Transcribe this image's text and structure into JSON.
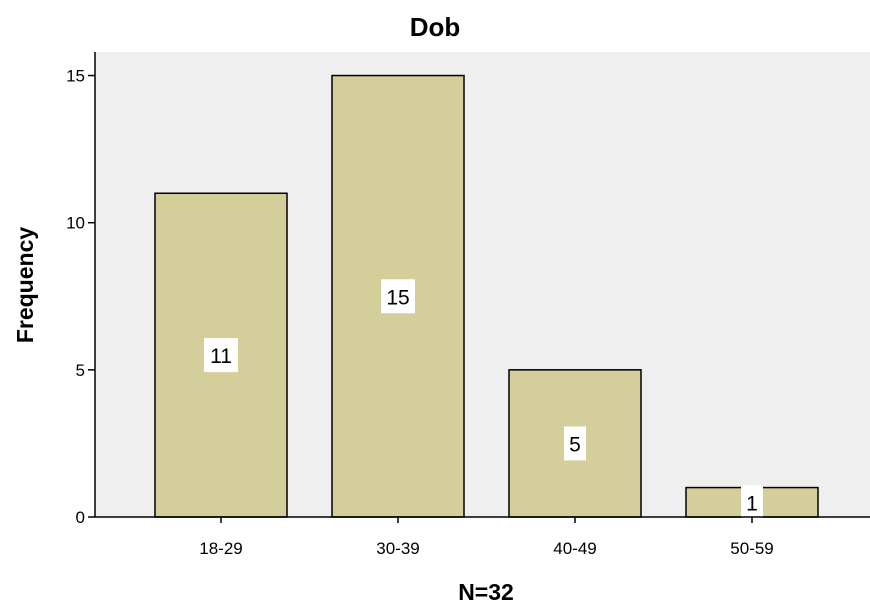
{
  "chart_data": {
    "type": "bar",
    "title": "Dob",
    "xlabel": "N=32",
    "ylabel": "Frequency",
    "categories": [
      "18-29",
      "30-39",
      "40-49",
      "50-59"
    ],
    "values": [
      11,
      15,
      5,
      1
    ],
    "data_labels": [
      "11",
      "15",
      "5",
      "1"
    ],
    "yticks": [
      0,
      5,
      10,
      15
    ],
    "ylim": [
      0,
      15.8
    ],
    "grid": false,
    "legend": "none",
    "colors": {
      "plot_background": "#efefef",
      "bar_fill": "#d3ce9a",
      "bar_stroke": "#000000",
      "label_background": "#ffffff"
    }
  }
}
